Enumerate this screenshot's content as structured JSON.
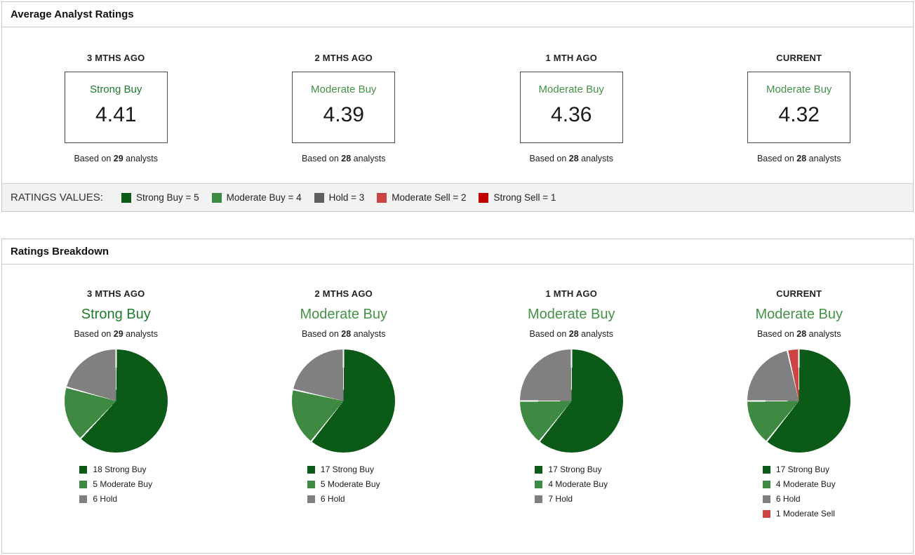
{
  "average_panel": {
    "title": "Average Analyst Ratings",
    "cards": [
      {
        "period": "3 MTHS AGO",
        "rating": "Strong Buy",
        "rating_color": "#1e7b2d",
        "value": "4.41",
        "based_prefix": "Based on",
        "count": "29",
        "based_suffix": "analysts"
      },
      {
        "period": "2 MTHS AGO",
        "rating": "Moderate Buy",
        "rating_color": "#449247",
        "value": "4.39",
        "based_prefix": "Based on",
        "count": "28",
        "based_suffix": "analysts"
      },
      {
        "period": "1 MTH AGO",
        "rating": "Moderate Buy",
        "rating_color": "#449247",
        "value": "4.36",
        "based_prefix": "Based on",
        "count": "28",
        "based_suffix": "analysts"
      },
      {
        "period": "CURRENT",
        "rating": "Moderate Buy",
        "rating_color": "#449247",
        "value": "4.32",
        "based_prefix": "Based on",
        "count": "28",
        "based_suffix": "analysts"
      }
    ]
  },
  "ratings_values": {
    "label": "RATINGS VALUES:",
    "items": [
      {
        "label": "Strong Buy = 5",
        "color": "#0b5a17"
      },
      {
        "label": "Moderate Buy = 4",
        "color": "#3e8a42"
      },
      {
        "label": "Hold = 3",
        "color": "#5f5f5f"
      },
      {
        "label": "Moderate Sell = 2",
        "color": "#cc4444"
      },
      {
        "label": "Strong Sell = 1",
        "color": "#c00000"
      }
    ]
  },
  "breakdown_panel": {
    "title": "Ratings Breakdown"
  },
  "chart_data": [
    {
      "type": "pie",
      "period": "3 MTHS AGO",
      "rating": "Strong Buy",
      "rating_color": "#1e7b2d",
      "based_prefix": "Based on",
      "count": "29",
      "based_suffix": "analysts",
      "total": 29,
      "legend_position": "bottom",
      "slices": [
        {
          "label": "18 Strong Buy",
          "name": "Strong Buy",
          "value": 18,
          "color": "#0b5a17"
        },
        {
          "label": "5 Moderate Buy",
          "name": "Moderate Buy",
          "value": 5,
          "color": "#3e8a42"
        },
        {
          "label": "6 Hold",
          "name": "Hold",
          "value": 6,
          "color": "#808080"
        }
      ]
    },
    {
      "type": "pie",
      "period": "2 MTHS AGO",
      "rating": "Moderate Buy",
      "rating_color": "#449247",
      "based_prefix": "Based on",
      "count": "28",
      "based_suffix": "analysts",
      "total": 28,
      "legend_position": "bottom",
      "slices": [
        {
          "label": "17 Strong Buy",
          "name": "Strong Buy",
          "value": 17,
          "color": "#0b5a17"
        },
        {
          "label": "5 Moderate Buy",
          "name": "Moderate Buy",
          "value": 5,
          "color": "#3e8a42"
        },
        {
          "label": "6 Hold",
          "name": "Hold",
          "value": 6,
          "color": "#808080"
        }
      ]
    },
    {
      "type": "pie",
      "period": "1 MTH AGO",
      "rating": "Moderate Buy",
      "rating_color": "#449247",
      "based_prefix": "Based on",
      "count": "28",
      "based_suffix": "analysts",
      "total": 28,
      "legend_position": "bottom",
      "slices": [
        {
          "label": "17 Strong Buy",
          "name": "Strong Buy",
          "value": 17,
          "color": "#0b5a17"
        },
        {
          "label": "4 Moderate Buy",
          "name": "Moderate Buy",
          "value": 4,
          "color": "#3e8a42"
        },
        {
          "label": "7 Hold",
          "name": "Hold",
          "value": 7,
          "color": "#808080"
        }
      ]
    },
    {
      "type": "pie",
      "period": "CURRENT",
      "rating": "Moderate Buy",
      "rating_color": "#449247",
      "based_prefix": "Based on",
      "count": "28",
      "based_suffix": "analysts",
      "total": 28,
      "legend_position": "bottom",
      "slices": [
        {
          "label": "17 Strong Buy",
          "name": "Strong Buy",
          "value": 17,
          "color": "#0b5a17"
        },
        {
          "label": "4 Moderate Buy",
          "name": "Moderate Buy",
          "value": 4,
          "color": "#3e8a42"
        },
        {
          "label": "6 Hold",
          "name": "Hold",
          "value": 6,
          "color": "#808080"
        },
        {
          "label": "1 Moderate Sell",
          "name": "Moderate Sell",
          "value": 1,
          "color": "#cc4444"
        }
      ]
    }
  ]
}
